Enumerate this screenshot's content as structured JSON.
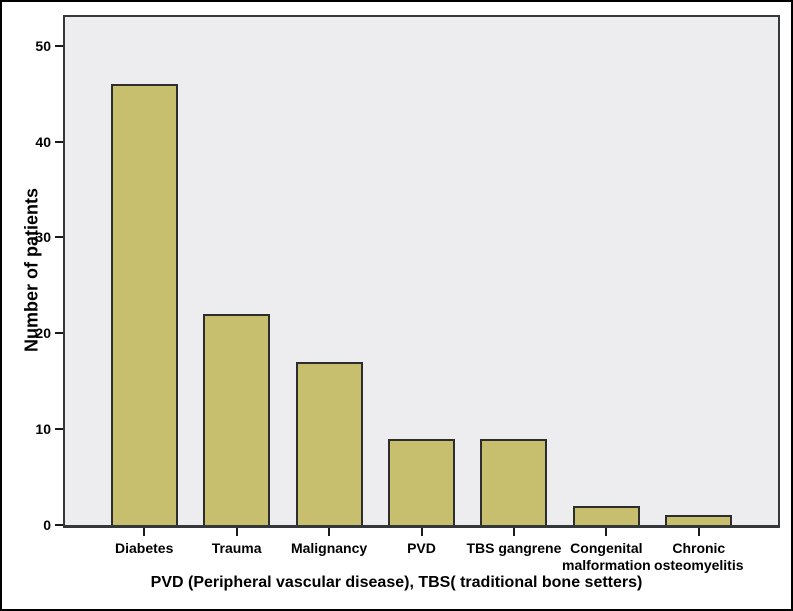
{
  "figure": {
    "caption": "PVD (Peripheral vascular disease), TBS( traditional bone setters)"
  },
  "chart_data": {
    "type": "bar",
    "title": "",
    "xlabel": "",
    "ylabel": "Number of patients",
    "categories": [
      "Diabetes",
      "Trauma",
      "Malignancy",
      "PVD",
      "TBS gangrene",
      "Congenital malformation",
      "Chronic osteomyelitis"
    ],
    "values": [
      46,
      22,
      17,
      9,
      9,
      2,
      1
    ],
    "yticks": [
      0,
      10,
      20,
      30,
      40,
      50
    ],
    "ylim": [
      0,
      53
    ],
    "grid": false,
    "legend": "none",
    "colors": {
      "bar_fill": "#c8bf6e",
      "bar_border": "#2d2d2d",
      "plot_bg": "#ededef",
      "plot_border": "#34383b",
      "figure_border": "#000000",
      "text": "#000000"
    }
  }
}
